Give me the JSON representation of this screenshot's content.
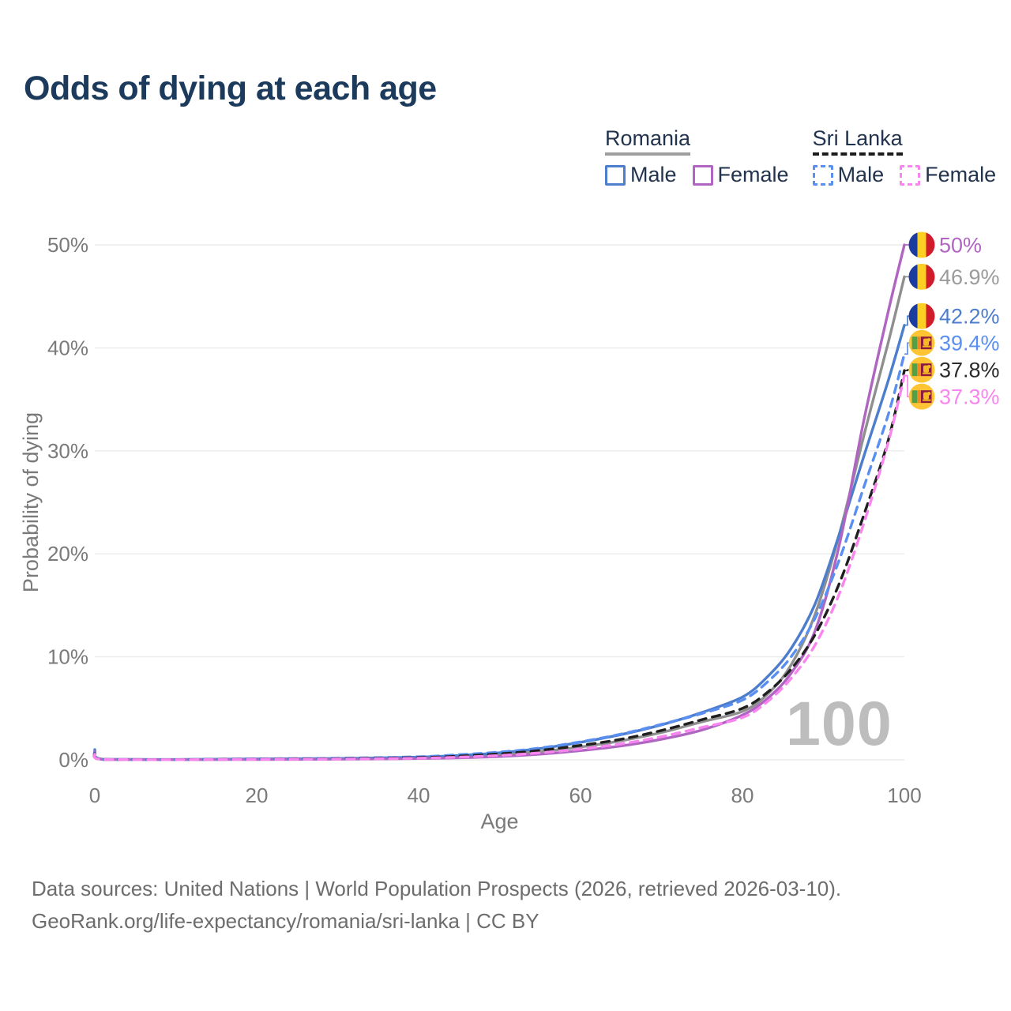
{
  "title": "Odds of dying at each age",
  "watermark": "100",
  "legend": {
    "groups": [
      {
        "name": "Romania",
        "style": "solid",
        "underline_color": "#9e9e9e",
        "items": [
          {
            "label": "Male",
            "color": "#4d7ecd",
            "dash": false
          },
          {
            "label": "Female",
            "color": "#b065c2",
            "dash": false
          }
        ]
      },
      {
        "name": "Sri Lanka",
        "style": "dashed",
        "underline_color": "#1c1c1c",
        "items": [
          {
            "label": "Male",
            "color": "#5a8ff2",
            "dash": true
          },
          {
            "label": "Female",
            "color": "#f985ef",
            "dash": true
          }
        ]
      }
    ]
  },
  "axes": {
    "x": {
      "label": "Age",
      "ticks": [
        0,
        20,
        40,
        60,
        80,
        100
      ],
      "range": [
        0,
        100
      ]
    },
    "y": {
      "label": "Probability of dying",
      "ticks": [
        "0%",
        "10%",
        "20%",
        "30%",
        "40%",
        "50%"
      ],
      "tick_values": [
        0,
        10,
        20,
        30,
        40,
        50
      ],
      "range": [
        0,
        50
      ]
    }
  },
  "chart_data": {
    "type": "line",
    "title": "Odds of dying at each age",
    "xlabel": "Age",
    "ylabel": "Probability of dying",
    "xlim": [
      0,
      100
    ],
    "ylim": [
      0,
      50
    ],
    "grid": true,
    "legend_position": "top-right",
    "x": [
      0,
      1,
      10,
      20,
      30,
      40,
      45,
      50,
      55,
      60,
      65,
      70,
      75,
      80,
      83,
      86,
      89,
      92,
      95,
      98,
      100
    ],
    "series": [
      {
        "name": "Romania",
        "sex": "Total",
        "flag": "romania",
        "color": "#8f8f8f",
        "label_color": "#9b9b9b",
        "dash": "solid",
        "end_label": "46.9%",
        "values": [
          0.9,
          0.045,
          0.025,
          0.065,
          0.1,
          0.2,
          0.31,
          0.5,
          0.8,
          1.25,
          1.85,
          2.65,
          3.7,
          4.7,
          6.3,
          9.2,
          14.2,
          22.0,
          31.5,
          40.5,
          46.9
        ]
      },
      {
        "name": "Romania Male",
        "sex": "Male",
        "flag": "romania",
        "color": "#4d7ecd",
        "label_color": "#4d7ecd",
        "dash": "solid",
        "end_label": "42.2%",
        "values": [
          1.0,
          0.05,
          0.03,
          0.09,
          0.13,
          0.26,
          0.42,
          0.68,
          1.1,
          1.7,
          2.45,
          3.4,
          4.6,
          6.1,
          8.0,
          10.8,
          15.2,
          22.0,
          29.5,
          36.8,
          42.2
        ]
      },
      {
        "name": "Romania Female",
        "sex": "Female",
        "flag": "romania",
        "color": "#b065c2",
        "label_color": "#b065c2",
        "dash": "solid",
        "end_label": "50%",
        "values": [
          0.8,
          0.04,
          0.02,
          0.04,
          0.06,
          0.13,
          0.2,
          0.32,
          0.55,
          0.9,
          1.35,
          2.0,
          2.9,
          4.35,
          5.9,
          8.4,
          12.6,
          21.0,
          33.0,
          43.5,
          50.0
        ]
      },
      {
        "name": "Sri Lanka Male",
        "sex": "Male",
        "flag": "sri-lanka",
        "color": "#5a8ff2",
        "label_color": "#5a8ff2",
        "dash": "dashed",
        "end_label": "39.4%",
        "values": [
          0.7,
          0.04,
          0.02,
          0.1,
          0.15,
          0.3,
          0.5,
          0.75,
          1.15,
          1.75,
          2.5,
          3.45,
          4.5,
          5.8,
          7.5,
          10.0,
          13.8,
          19.5,
          26.5,
          33.5,
          39.4
        ]
      },
      {
        "name": "Sri Lanka",
        "sex": "Total",
        "flag": "sri-lanka",
        "color": "#1f1f1f",
        "label_color": "#2b2b2b",
        "dash": "dashed",
        "end_label": "37.8%",
        "values": [
          0.6,
          0.035,
          0.018,
          0.07,
          0.11,
          0.22,
          0.36,
          0.58,
          0.92,
          1.4,
          2.0,
          2.85,
          3.9,
          5.0,
          6.5,
          8.8,
          12.2,
          17.2,
          23.8,
          31.0,
          37.8
        ]
      },
      {
        "name": "Sri Lanka Female",
        "sex": "Female",
        "flag": "sri-lanka",
        "color": "#f985ef",
        "label_color": "#f985ef",
        "dash": "dashed",
        "end_label": "37.3%",
        "values": [
          0.55,
          0.03,
          0.015,
          0.05,
          0.08,
          0.16,
          0.26,
          0.42,
          0.68,
          1.05,
          1.55,
          2.25,
          3.15,
          4.1,
          5.6,
          7.9,
          11.2,
          16.2,
          23.0,
          30.8,
          37.3
        ]
      }
    ]
  },
  "colors": {
    "title": "#1c3a5c",
    "axis_text": "#7a7a7a",
    "gridline": "#ebebeb",
    "watermark": "#bdbdbd",
    "footer_text": "#6d6d6d",
    "legend_text": "#22344d"
  },
  "flags": {
    "romania": {
      "blue": "#1c3b9e",
      "yellow": "#fcd023",
      "red": "#d01b2a"
    },
    "sri_lanka": {
      "gold": "#fec434",
      "green": "#55a046",
      "orange": "#f08a1d",
      "maroon": "#8d1b3d",
      "lion": "#f5b921"
    }
  },
  "footer": {
    "line1": "Data sources: United Nations | World Population Prospects (2026, retrieved 2026-03-10).",
    "line2": "GeoRank.org/life-expectancy/romania/sri-lanka | CC BY"
  }
}
